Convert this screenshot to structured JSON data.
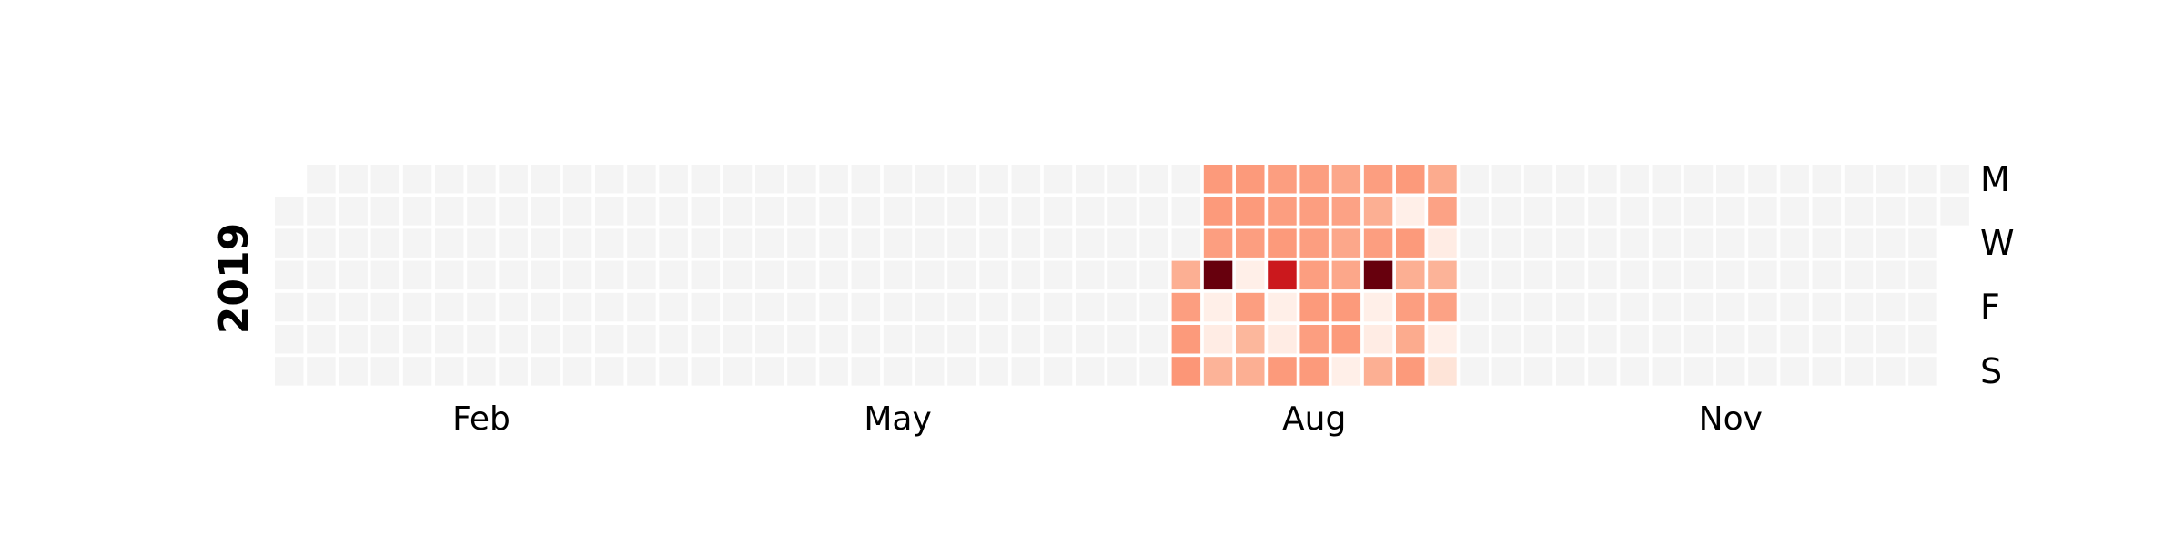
{
  "chart_data": {
    "type": "heatmap",
    "year": "2019",
    "month_labels": [
      {
        "label": "Feb",
        "week": 6
      },
      {
        "label": "May",
        "week": 19
      },
      {
        "label": "Aug",
        "week": 32
      },
      {
        "label": "Nov",
        "week": 45
      }
    ],
    "weekday_labels": [
      {
        "label": "M",
        "row": 0
      },
      {
        "label": "W",
        "row": 2
      },
      {
        "label": "F",
        "row": 4
      },
      {
        "label": "S",
        "row": 6
      }
    ],
    "grid": {
      "weeks": 53,
      "first_day_row": 1,
      "days": 365
    },
    "value_range": [
      0,
      4
    ],
    "colors": {
      "empty": "#f4f4f4",
      "stops": [
        "#fff5f0",
        "#fcbba1",
        "#fc9272",
        "#cb181d",
        "#67000d"
      ]
    },
    "active_weeks": [
      {
        "week": 28,
        "values": [
          null,
          null,
          null,
          1.3,
          1.7,
          1.8,
          1.9
        ]
      },
      {
        "week": 29,
        "values": [
          1.8,
          1.8,
          1.7,
          4.0,
          0.1,
          0.15,
          1.2
        ]
      },
      {
        "week": 30,
        "values": [
          1.8,
          1.8,
          1.7,
          0.1,
          1.7,
          1.1,
          1.3
        ]
      },
      {
        "week": 31,
        "values": [
          1.7,
          1.7,
          1.8,
          3.0,
          0.1,
          0.15,
          1.8
        ]
      },
      {
        "week": 32,
        "values": [
          1.7,
          1.7,
          1.7,
          1.7,
          1.8,
          1.7,
          1.8
        ]
      },
      {
        "week": 33,
        "values": [
          1.5,
          1.6,
          1.5,
          1.5,
          1.8,
          1.8,
          0.1
        ]
      },
      {
        "week": 34,
        "values": [
          1.7,
          1.3,
          1.7,
          4.0,
          0.1,
          0.15,
          1.3
        ]
      },
      {
        "week": 35,
        "values": [
          1.8,
          0.1,
          1.8,
          1.3,
          1.7,
          1.4,
          1.8
        ]
      },
      {
        "week": 36,
        "values": [
          1.4,
          1.6,
          0.15,
          1.2,
          1.6,
          0.1,
          0.3
        ]
      }
    ]
  }
}
